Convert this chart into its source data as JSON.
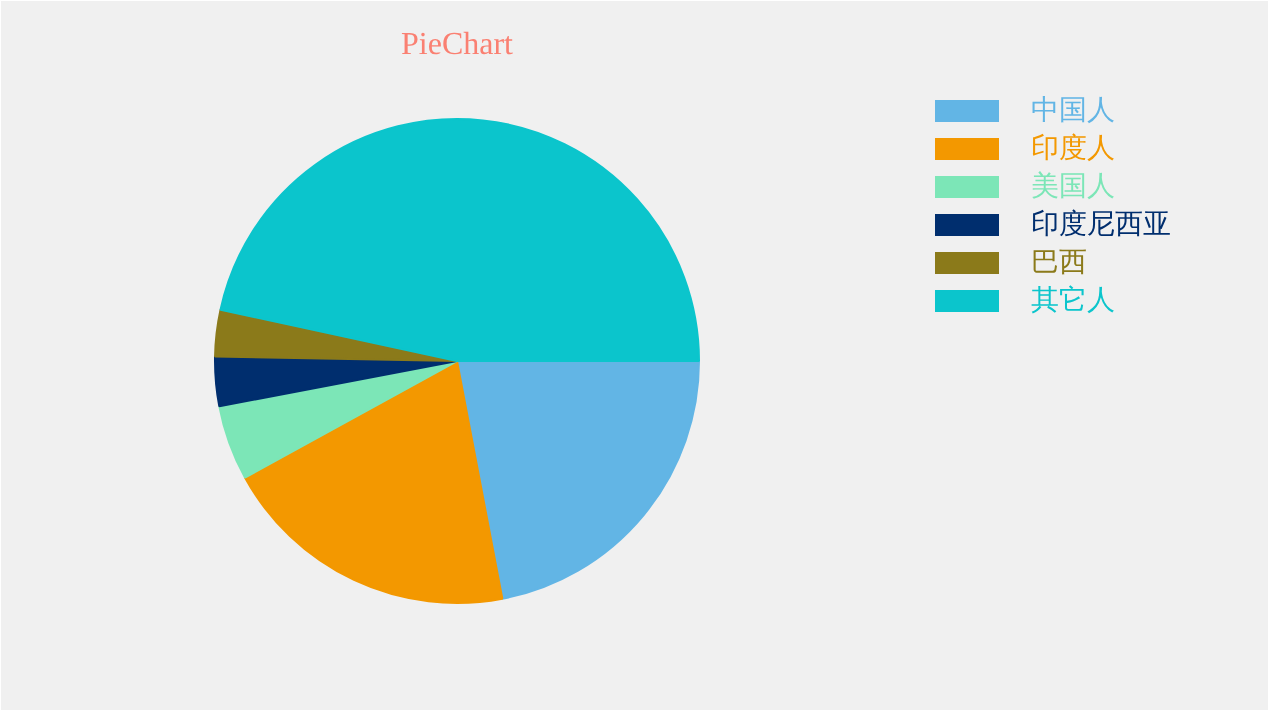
{
  "chart_data": {
    "type": "pie",
    "title": "PieChart",
    "categories": [
      "中国人",
      "印度人",
      "美国人",
      "印度尼西亚",
      "巴西",
      "其它人"
    ],
    "values": [
      22,
      20,
      5,
      3.3,
      3.1,
      46.6
    ],
    "colors": [
      "#62b5e5",
      "#f39800",
      "#7ce6b7",
      "#002e6e",
      "#8b7a1a",
      "#0bc5cc"
    ],
    "legend": "top right"
  }
}
